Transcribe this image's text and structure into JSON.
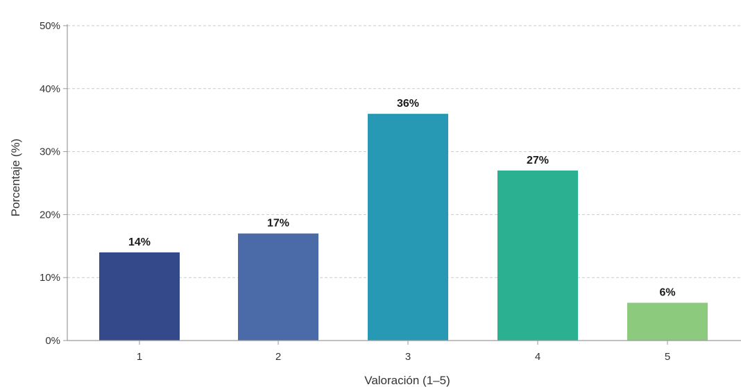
{
  "chart_data": {
    "type": "bar",
    "categories": [
      "1",
      "2",
      "3",
      "4",
      "5"
    ],
    "values": [
      14,
      17,
      36,
      27,
      6
    ],
    "data_labels": [
      "14%",
      "17%",
      "36%",
      "27%",
      "6%"
    ],
    "colors": [
      "#34498a",
      "#4a6ba8",
      "#2899b4",
      "#2bb191",
      "#8ccb7e"
    ],
    "xlabel": "Valoración (1–5)",
    "ylabel": "Porcentaje (%)",
    "ylim": [
      0,
      50
    ],
    "y_ticks": [
      0,
      10,
      20,
      30,
      40,
      50
    ],
    "y_tick_labels": [
      "0%",
      "10%",
      "20%",
      "30%",
      "40%",
      "50%"
    ],
    "grid": true
  }
}
